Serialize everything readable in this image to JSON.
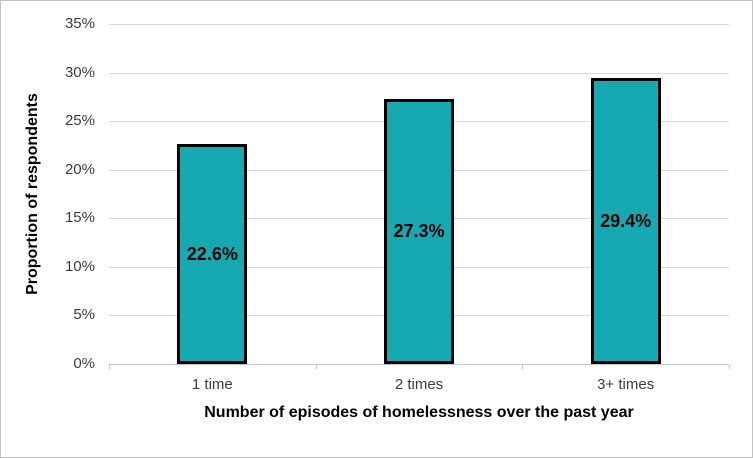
{
  "chart_data": {
    "type": "bar",
    "title": "",
    "categories": [
      "1 time",
      "2 times",
      "3+ times"
    ],
    "values": [
      22.6,
      27.3,
      29.4
    ],
    "data_labels": [
      "22.6%",
      "27.3%",
      "29.4%"
    ],
    "data_label_position": "center-inside-bar",
    "xlabel": "Number of episodes of homelessness over the past year",
    "ylabel": "Proportion of respondents",
    "ylim": [
      0,
      35
    ],
    "y_ticks": [
      {
        "value": 0,
        "label": "0%"
      },
      {
        "value": 5,
        "label": "5%"
      },
      {
        "value": 10,
        "label": "10%"
      },
      {
        "value": 15,
        "label": "15%"
      },
      {
        "value": 20,
        "label": "20%"
      },
      {
        "value": 25,
        "label": "25%"
      },
      {
        "value": 30,
        "label": "30%"
      },
      {
        "value": 35,
        "label": "35%"
      }
    ],
    "grid": true,
    "legend_position": "none",
    "colors": {
      "bar_fill": "#16a9b2",
      "bar_border": "#000000",
      "gridline": "#d9d9d9",
      "axis_line": "#c6c6c6",
      "tick_text": "#3b3b3b",
      "title_text": "#000000"
    }
  }
}
